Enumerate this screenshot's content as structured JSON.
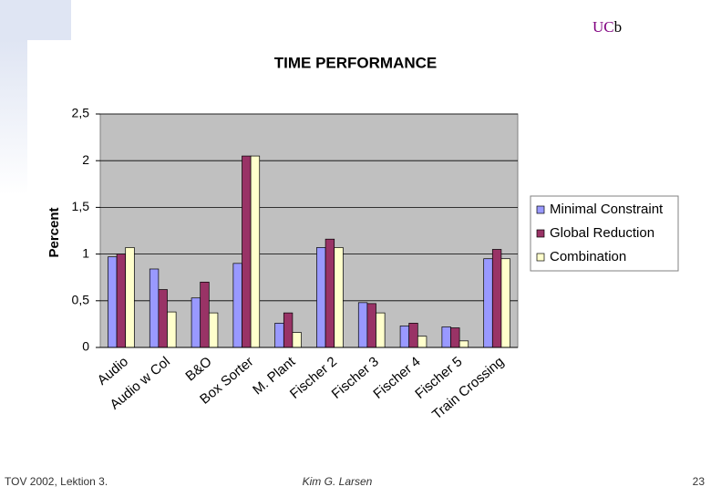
{
  "slide": {
    "logo_main": "UC",
    "logo_tail": "b",
    "footer_left": "TOV 2002, Lektion 3.",
    "footer_center": "Kim G. Larsen",
    "page_number": 23
  },
  "chart_data": {
    "type": "bar",
    "title": "TIME PERFORMANCE",
    "y_label": "Percent",
    "categories": [
      "Audio",
      "Audio w Col",
      "B&O",
      "Box Sorter",
      "M. Plant",
      "Fischer 2",
      "Fischer 3",
      "Fischer 4",
      "Fischer 5",
      "Train Crossing"
    ],
    "series": [
      {
        "name": "Minimal Constraint",
        "color": "#9999ff",
        "values": [
          0.97,
          0.84,
          0.53,
          0.9,
          0.26,
          1.07,
          0.48,
          0.23,
          0.22,
          0.95
        ]
      },
      {
        "name": "Global Reduction",
        "color": "#993366",
        "values": [
          1.0,
          0.62,
          0.7,
          2.05,
          0.37,
          1.16,
          0.47,
          0.26,
          0.21,
          1.05
        ]
      },
      {
        "name": "Combination",
        "color": "#ffffcc",
        "values": [
          1.07,
          0.38,
          0.37,
          2.05,
          0.16,
          1.07,
          0.37,
          0.12,
          0.07,
          0.95
        ]
      }
    ],
    "ylim": [
      0,
      2.5
    ],
    "yticks": [
      0,
      {
        "value": 0.5,
        "label": "0,5"
      },
      1,
      {
        "value": 1.5,
        "label": "1,5"
      },
      2,
      {
        "value": 2.5,
        "label": "2,5"
      }
    ],
    "grid": true,
    "legend": "right"
  }
}
